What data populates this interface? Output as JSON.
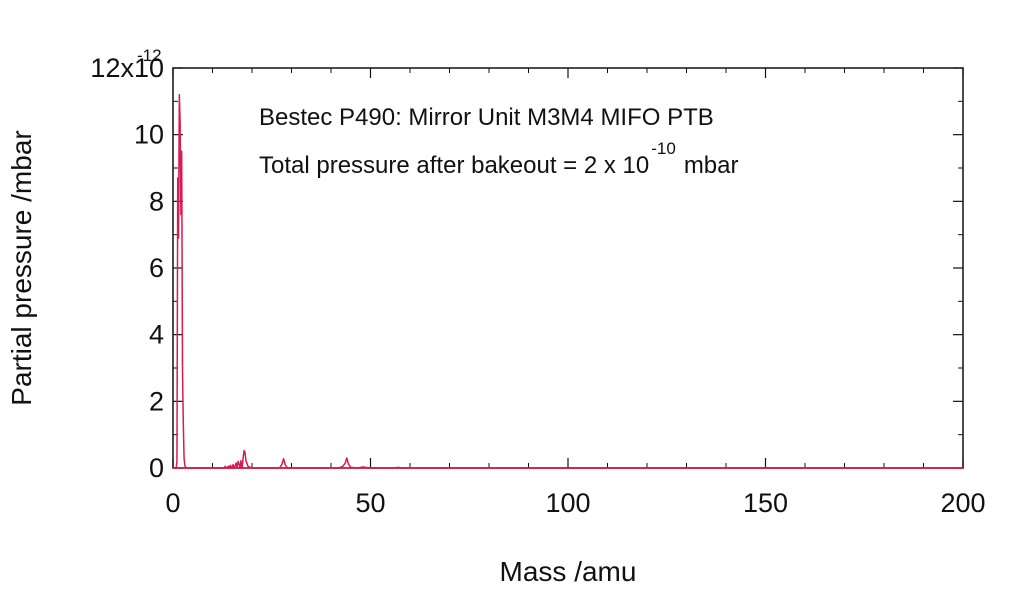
{
  "chart_data": {
    "type": "line",
    "title": "",
    "xlabel": "Mass /amu",
    "ylabel": "Partial pressure /mbar",
    "xlim": [
      0,
      200
    ],
    "ylim": [
      0,
      12
    ],
    "x_ticks": [
      0,
      50,
      100,
      150,
      200
    ],
    "x_tick_labels": [
      "0",
      "50",
      "100",
      "150",
      "200"
    ],
    "y_ticks": [
      0,
      2,
      4,
      6,
      8,
      10,
      12
    ],
    "y_tick_labels": [
      "0",
      "2",
      "4",
      "6",
      "8",
      "10",
      "12x10"
    ],
    "y_multiplier_exponent": "-12",
    "grid": false,
    "line_color": "#d81b50",
    "annotations": {
      "line1": "Bestec P490: Mirror Unit M3M4 MIFO PTB",
      "line2_prefix": "Total pressure after bakeout = 2 x 10",
      "line2_exponent": "-10",
      "line2_suffix": "mbar"
    },
    "series": [
      {
        "x": [
          0,
          0.8,
          1.0,
          1.2,
          1.4,
          1.6,
          1.8,
          2.0,
          2.2,
          2.4,
          2.6,
          2.8,
          3.0,
          3.2,
          3.6,
          4,
          10,
          12,
          13,
          13.2,
          13.5,
          14,
          14.2,
          14.5,
          15,
          15.2,
          15.5,
          16,
          16.2,
          16.5,
          17,
          17.2,
          17.5,
          17.8,
          18,
          18.2,
          18.5,
          19,
          19.5,
          20,
          27,
          27.6,
          28,
          28.4,
          29,
          40,
          42,
          43,
          43.6,
          44,
          44.4,
          45,
          47,
          48,
          50,
          56,
          57,
          58,
          60,
          200
        ],
        "y": [
          0,
          0,
          0.2,
          8.7,
          6.9,
          11.2,
          10.4,
          7.6,
          9.5,
          3.0,
          1.4,
          0.3,
          0.08,
          0.02,
          0,
          0,
          0,
          0,
          0,
          0.05,
          0,
          0.05,
          0,
          0.08,
          0,
          0.1,
          0,
          0.15,
          0,
          0.2,
          0,
          0.22,
          0,
          0.35,
          0.52,
          0.48,
          0.2,
          0.05,
          0.02,
          0,
          0,
          0.12,
          0.28,
          0.1,
          0,
          0,
          0,
          0.05,
          0.15,
          0.3,
          0.12,
          0.02,
          0,
          0.03,
          0,
          0,
          0.02,
          0,
          0,
          0
        ]
      }
    ]
  }
}
